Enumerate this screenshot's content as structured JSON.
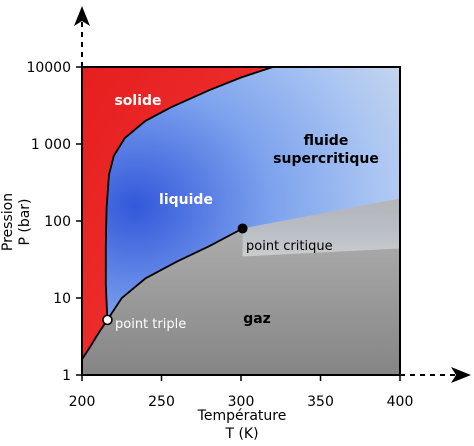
{
  "chart_data": {
    "type": "area",
    "title": "",
    "xlabel_line1": "Température",
    "xlabel_line2": "T (K)",
    "ylabel_line1": "Pression",
    "ylabel_line2": "P (bar)",
    "xlim": [
      200,
      400
    ],
    "ylim": [
      1,
      10000
    ],
    "y_scale": "log",
    "x_ticks": [
      200,
      250,
      300,
      350,
      400
    ],
    "x_tick_labels": [
      "200",
      "250",
      "300",
      "350",
      "400"
    ],
    "y_ticks": [
      1,
      10,
      100,
      1000,
      10000
    ],
    "y_tick_labels": [
      "1",
      "10",
      "100",
      "1 000",
      "10000"
    ],
    "grid": false,
    "regions": [
      {
        "name": "solide",
        "color": "#e82020"
      },
      {
        "name": "liquide",
        "color": "#4a6fe0"
      },
      {
        "name": "gaz",
        "color": "#909090"
      },
      {
        "name": "fluide supercritique",
        "color": "#a8c4f0"
      }
    ],
    "region_labels": {
      "solide": "solide",
      "liquide": "liquide",
      "gaz": "gaz",
      "fluide_line1": "fluide",
      "fluide_line2": "supercritique"
    },
    "points": [
      {
        "name": "point triple",
        "x": 216,
        "y": 5.2
      },
      {
        "name": "point critique",
        "x": 301,
        "y": 80
      }
    ],
    "boundaries": {
      "sublimation": [
        [
          200,
          1.6
        ],
        [
          205,
          2.3
        ],
        [
          210,
          3.4
        ],
        [
          216,
          5.2
        ]
      ],
      "melting": [
        [
          216,
          5.2
        ],
        [
          215,
          15
        ],
        [
          215,
          50
        ],
        [
          215.5,
          150
        ],
        [
          217,
          400
        ],
        [
          220,
          700
        ],
        [
          227,
          1200
        ],
        [
          240,
          2000
        ],
        [
          256,
          3000
        ],
        [
          280,
          5000
        ],
        [
          300,
          7300
        ],
        [
          320,
          10000
        ]
      ],
      "vaporization": [
        [
          216,
          5.2
        ],
        [
          225,
          10
        ],
        [
          240,
          18
        ],
        [
          260,
          30
        ],
        [
          280,
          47
        ],
        [
          301,
          80
        ]
      ]
    }
  },
  "colors": {
    "solid_red": "#e82020",
    "liquid_blue": "#3f65de",
    "supercritical_blue": "#aac8f4",
    "gas_gray_dark": "#888888",
    "gas_gray_light": "#d6d6d6"
  }
}
